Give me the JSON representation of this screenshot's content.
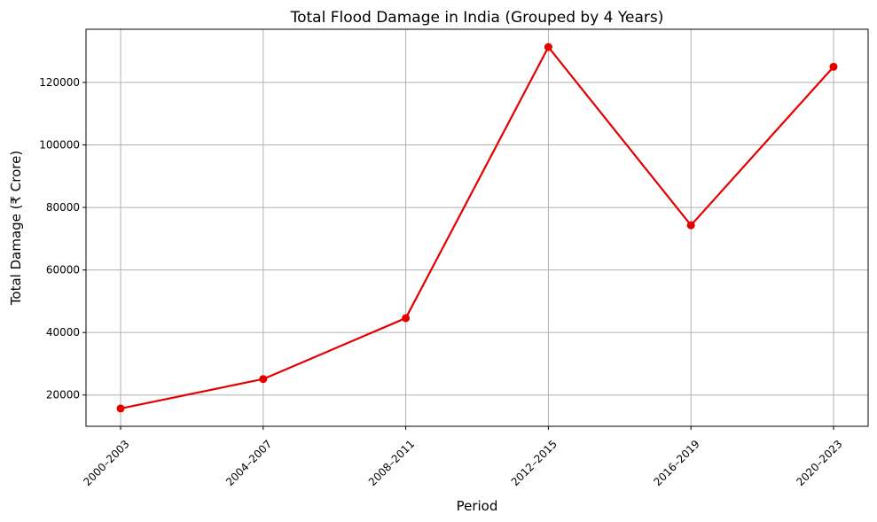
{
  "chart_data": {
    "type": "line",
    "title": "Total Flood Damage in India (Grouped by 4 Years)",
    "xlabel": "Period",
    "ylabel": "Total Damage (₹ Crore)",
    "categories": [
      "2000–2003",
      "2004–2007",
      "2008–2011",
      "2012–2015",
      "2016–2019",
      "2020–2023"
    ],
    "series": [
      {
        "values": [
          15700,
          25100,
          44600,
          131300,
          74300,
          125000
        ],
        "color": "#e50000"
      }
    ],
    "ylim": [
      10000,
      137000
    ],
    "yticks": [
      20000,
      40000,
      60000,
      80000,
      100000,
      120000
    ],
    "ytick_labels": [
      "20000",
      "40000",
      "60000",
      "80000",
      "100000",
      "120000"
    ],
    "grid": true,
    "x_tick_rotation": "45"
  }
}
